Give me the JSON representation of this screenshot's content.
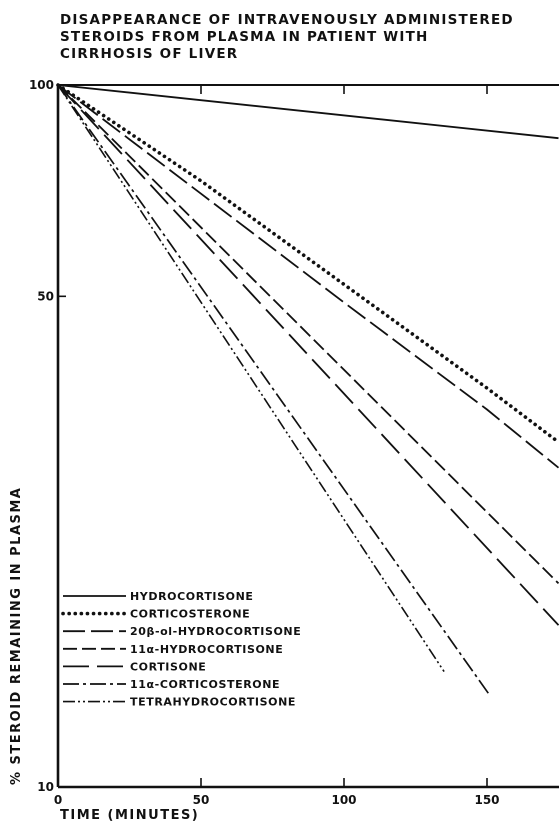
{
  "chart_data": {
    "type": "line",
    "title_lines": [
      "DISAPPEARANCE OF INTRAVENOUSLY ADMINISTERED",
      "STEROIDS  FROM PLASMA IN PATIENT WITH",
      "CIRRHOSIS  OF  LIVER"
    ],
    "xlabel": "TIME (MINUTES)",
    "ylabel": "% STEROID REMAINING IN PLASMA",
    "x_ticks": [
      0,
      50,
      100,
      150
    ],
    "y_ticks": [
      10,
      50,
      100
    ],
    "xlim": [
      0,
      175
    ],
    "ylim": [
      10,
      100
    ],
    "y_scale": "log",
    "legend_position": "bottom-left",
    "series": [
      {
        "name": "HYDROCORTISONE",
        "style": "solid",
        "x": [
          0,
          175
        ],
        "y": [
          100,
          84
        ]
      },
      {
        "name": "CORTICOSTERONE",
        "style": "dotted",
        "x": [
          0,
          50,
          100,
          150,
          175
        ],
        "y": [
          100,
          73,
          52,
          37,
          31
        ]
      },
      {
        "name": "20β-ol-HYDROCORTISONE",
        "style": "long-dash",
        "x": [
          0,
          50,
          100,
          150,
          175
        ],
        "y": [
          100,
          70,
          49,
          34.5,
          28.5
        ]
      },
      {
        "name": "11α-HYDROCORTISONE",
        "style": "dash",
        "x": [
          0,
          175
        ],
        "y": [
          100,
          19.5
        ]
      },
      {
        "name": "CORTISONE",
        "style": "long-dash-2",
        "x": [
          0,
          175
        ],
        "y": [
          100,
          17
        ]
      },
      {
        "name": "11α-CORTICOSTERONE",
        "style": "dash-dot",
        "x": [
          0,
          151
        ],
        "y": [
          100,
          13.5
        ]
      },
      {
        "name": "TETRAHYDROCORTISONE",
        "style": "dash-dot-dot",
        "x": [
          0,
          135
        ],
        "y": [
          100,
          14.6
        ]
      }
    ]
  }
}
